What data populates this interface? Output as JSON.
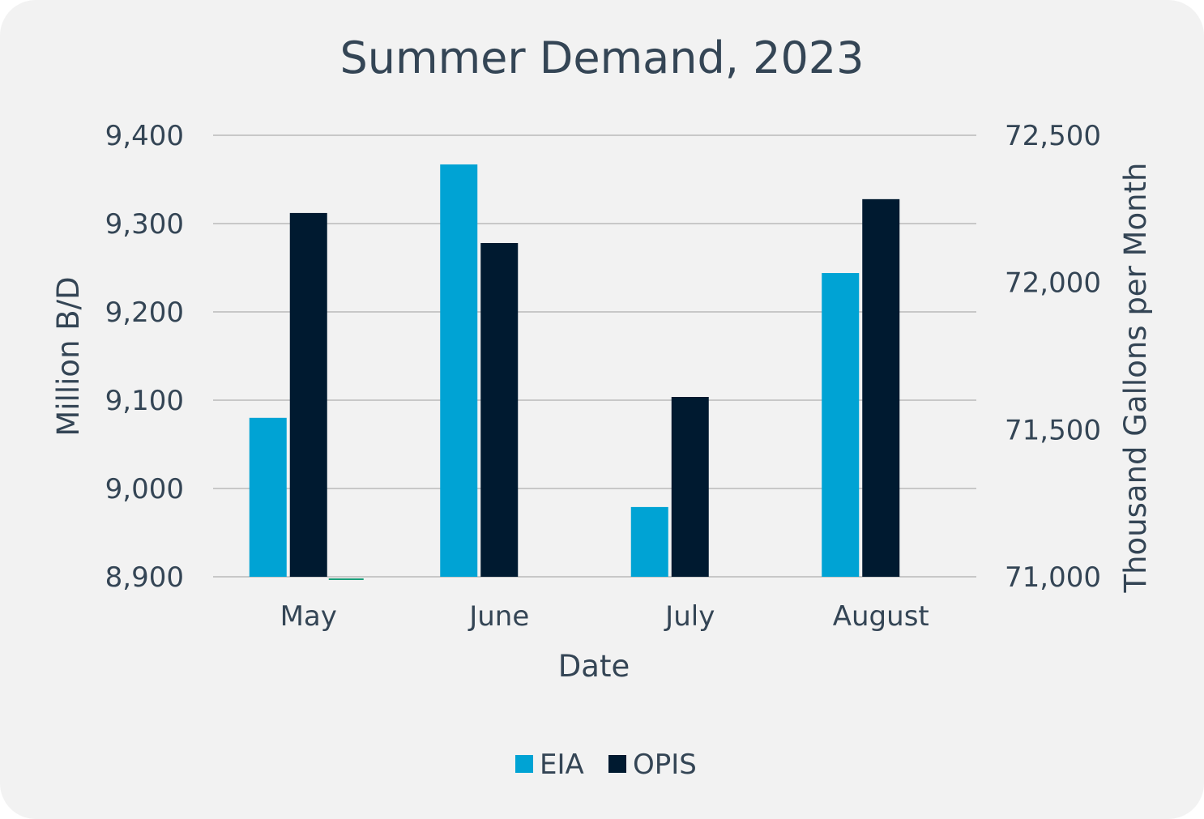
{
  "chart_data": {
    "type": "bar",
    "title": "Summer Demand, 2023",
    "xlabel": "Date",
    "ylabel": "Million B/D",
    "y2label": "Thousand Gallons per Month",
    "categories": [
      "May",
      "June",
      "July",
      "August"
    ],
    "ylim": [
      8900,
      9400
    ],
    "yticks": [
      8900,
      9000,
      9100,
      9200,
      9300,
      9400
    ],
    "ytick_labels": [
      "8,900",
      "9,000",
      "9,100",
      "9,200",
      "9,300",
      "9,400"
    ],
    "y2lim": [
      71000,
      72500
    ],
    "y2ticks": [
      71000,
      71500,
      72000,
      72500
    ],
    "y2tick_labels": [
      "71,000",
      "71,500",
      "72,000",
      "72,500"
    ],
    "grid": true,
    "legend_position": "bottom-center",
    "series": [
      {
        "name": "EIA",
        "axis": "left",
        "color": "#00a3d4",
        "values": [
          9080,
          9367,
          8979,
          9244
        ]
      },
      {
        "name": "OPIS",
        "axis": "right",
        "color": "#001a30",
        "values": [
          72236,
          72134,
          71611,
          72283
        ]
      }
    ],
    "minor_marker": {
      "category": "May",
      "color": "#1a9e7a"
    }
  }
}
